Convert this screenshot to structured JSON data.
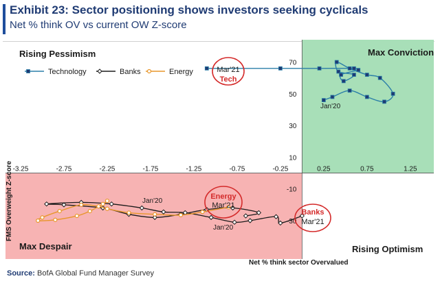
{
  "header": {
    "title": "Exhibit 23: Sector positioning shows investors seeking cyclicals",
    "subtitle": "Net % think OV vs current OW Z-score"
  },
  "footer": {
    "source_label": "Source:",
    "source_text": "BofA Global Fund Manager Survey"
  },
  "colors": {
    "accent": "#1f4e9c",
    "technology": "#2a7ea8",
    "banks": "#1a1a1a",
    "energy": "#e8962a",
    "max_conviction_bg": "#a8dfb8",
    "max_despair_bg": "#f7b3b3",
    "circle_red": "#d42a2a"
  },
  "chart_data": {
    "type": "line",
    "xlabel": "Net % think sector Overvalued",
    "ylabel": "FMS Overweight Z-score",
    "xlim": [
      -3.25,
      1.45
    ],
    "ylim": [
      -30,
      75
    ],
    "x_ticks": [
      -3.25,
      -2.75,
      -2.25,
      -1.75,
      -1.25,
      -0.75,
      -0.25,
      0.25,
      0.75,
      1.25
    ],
    "x_tick_labels": [
      "-3.25",
      "-2.75",
      "-2.25",
      "-1.75",
      "-1.25",
      "-0.75",
      "-0.25",
      "0.25",
      "0.75",
      "1.25"
    ],
    "y_ticks": [
      70,
      50,
      30,
      10,
      -10,
      -30
    ],
    "y_tick_labels": [
      "70",
      "50",
      "30",
      "10",
      "-10",
      "-30"
    ],
    "legend": [
      "Technology",
      "Banks",
      "Energy"
    ],
    "quadrants": {
      "top_left": "Rising Pessimism",
      "top_right": "Max Conviction",
      "bottom_left": "Max Despair",
      "bottom_right": "Rising Optimism"
    },
    "annotations": [
      {
        "series": "Technology",
        "label": "Mar'21",
        "sub": "Tech"
      },
      {
        "series": "Technology",
        "label": "Jan'20"
      },
      {
        "series": "Energy",
        "label": "Energy",
        "sub": "Mar'21"
      },
      {
        "series": "Energy",
        "label": "Jan'20"
      },
      {
        "series": "Banks",
        "label": "Banks",
        "sub": "Mar'21"
      },
      {
        "series": "Banks",
        "label": "Jan'20"
      }
    ],
    "series": [
      {
        "name": "Technology",
        "points": [
          [
            0.25,
            46
          ],
          [
            0.35,
            48
          ],
          [
            0.55,
            52
          ],
          [
            0.75,
            48
          ],
          [
            0.95,
            45
          ],
          [
            1.05,
            50
          ],
          [
            0.9,
            60
          ],
          [
            0.75,
            62
          ],
          [
            0.55,
            66
          ],
          [
            0.4,
            70
          ],
          [
            0.42,
            64
          ],
          [
            0.6,
            62
          ],
          [
            0.48,
            58
          ],
          [
            0.45,
            62
          ],
          [
            0.65,
            65
          ],
          [
            0.6,
            66
          ],
          [
            0.2,
            66
          ],
          [
            -0.25,
            66
          ],
          [
            -1.1,
            66
          ]
        ]
      },
      {
        "name": "Banks",
        "points": [
          [
            -0.65,
            -27
          ],
          [
            -0.5,
            -25
          ],
          [
            -0.8,
            -22
          ],
          [
            -1.1,
            -23
          ],
          [
            -1.4,
            -26
          ],
          [
            -1.7,
            -28
          ],
          [
            -2.0,
            -26
          ],
          [
            -2.3,
            -22
          ],
          [
            -2.75,
            -20
          ],
          [
            -2.95,
            -19.5
          ],
          [
            -2.55,
            -18.5
          ],
          [
            -2.2,
            -19.5
          ],
          [
            -1.85,
            -22
          ],
          [
            -1.6,
            -24.5
          ],
          [
            -1.35,
            -25
          ],
          [
            -1.05,
            -28
          ],
          [
            -0.78,
            -31
          ],
          [
            -0.6,
            -30
          ],
          [
            -0.3,
            -27.5
          ],
          [
            -0.25,
            -31.5
          ],
          [
            0.0,
            -27
          ]
        ]
      },
      {
        "name": "Energy",
        "points": [
          [
            -0.85,
            -21.5
          ],
          [
            -1.15,
            -24.5
          ],
          [
            -1.4,
            -26.5
          ],
          [
            -1.7,
            -26
          ],
          [
            -2.0,
            -25
          ],
          [
            -2.25,
            -22.5
          ],
          [
            -2.35,
            -21
          ],
          [
            -2.55,
            -20
          ],
          [
            -2.8,
            -24
          ],
          [
            -3.0,
            -28
          ],
          [
            -3.05,
            -30
          ],
          [
            -2.85,
            -29.5
          ],
          [
            -2.6,
            -27
          ],
          [
            -2.45,
            -24
          ],
          [
            -2.3,
            -19.5
          ],
          [
            -2.25,
            -17.5
          ]
        ]
      }
    ]
  }
}
